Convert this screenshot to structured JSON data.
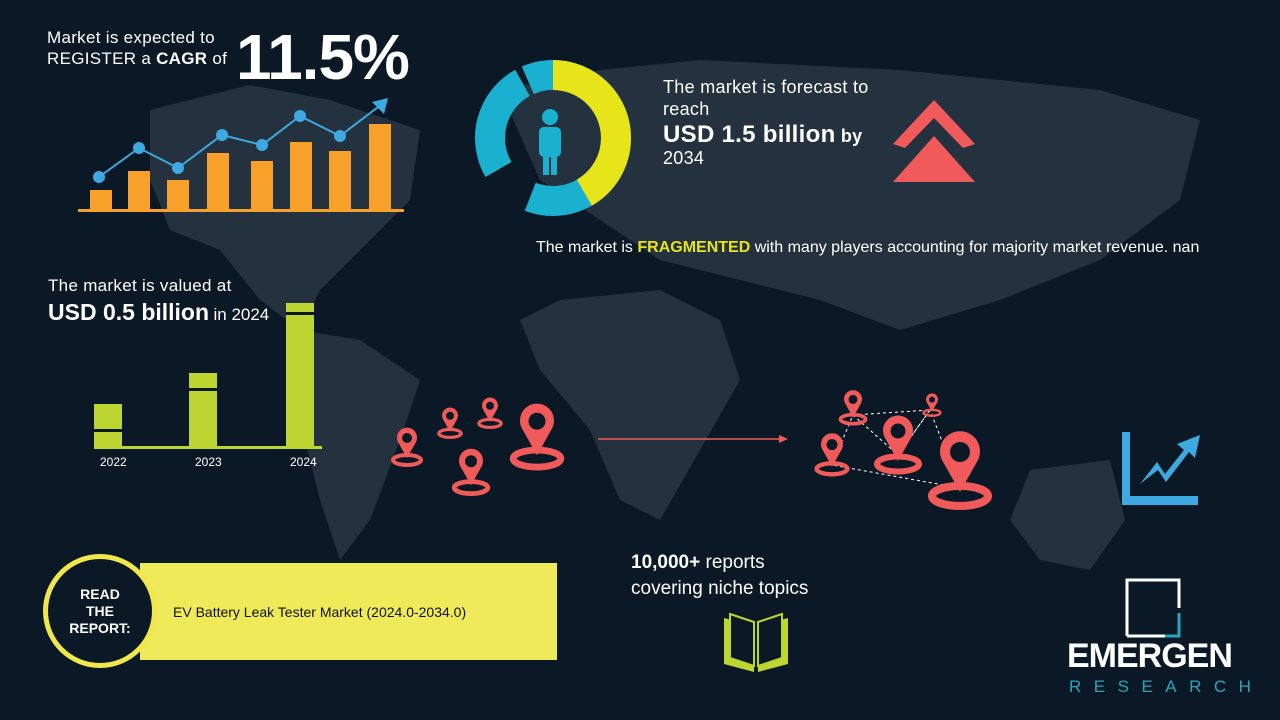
{
  "cagr": {
    "line1": "Market is expected to",
    "line2_prefix": "REGISTER a ",
    "line2_bold": "CAGR",
    "line2_suffix": " of",
    "value": "11.5%"
  },
  "forecast": {
    "line1": "The market is forecast to",
    "line2": "reach",
    "value": "USD 1.5 billion",
    "by": "by",
    "year": "2034"
  },
  "fragmented": {
    "prefix": "The market is ",
    "highlight": "FRAGMENTED",
    "suffix": " with many players accounting for majority market revenue. nan"
  },
  "valued": {
    "line1": "The market is valued at",
    "value": "USD 0.5 billion",
    "suffix": "in 2024"
  },
  "years": [
    "2022",
    "2023",
    "2024"
  ],
  "report": {
    "read_label": [
      "READ",
      "THE",
      "REPORT:"
    ],
    "title": "EV Battery Leak Tester Market (2024.0-2034.0)"
  },
  "reports": {
    "bold": "10,000+",
    "line1_rest": " reports",
    "line2": "covering niche topics"
  },
  "logo": {
    "name": "EMERGEN",
    "sub": "RESEARCH"
  },
  "colors": {
    "background": "#0b1926",
    "orange": "#f7a12b",
    "blue": "#3ea8e0",
    "yellow": "#e8e41a",
    "cyan": "#1ab0d0",
    "red": "#f05a5a",
    "lime": "#bdd531",
    "banner": "#eeea5a"
  },
  "icons": [
    "growth-bar-chart-icon",
    "donut-person-icon",
    "double-chevron-up-icon",
    "location-pin-icon",
    "trend-chart-icon",
    "open-book-icon"
  ]
}
